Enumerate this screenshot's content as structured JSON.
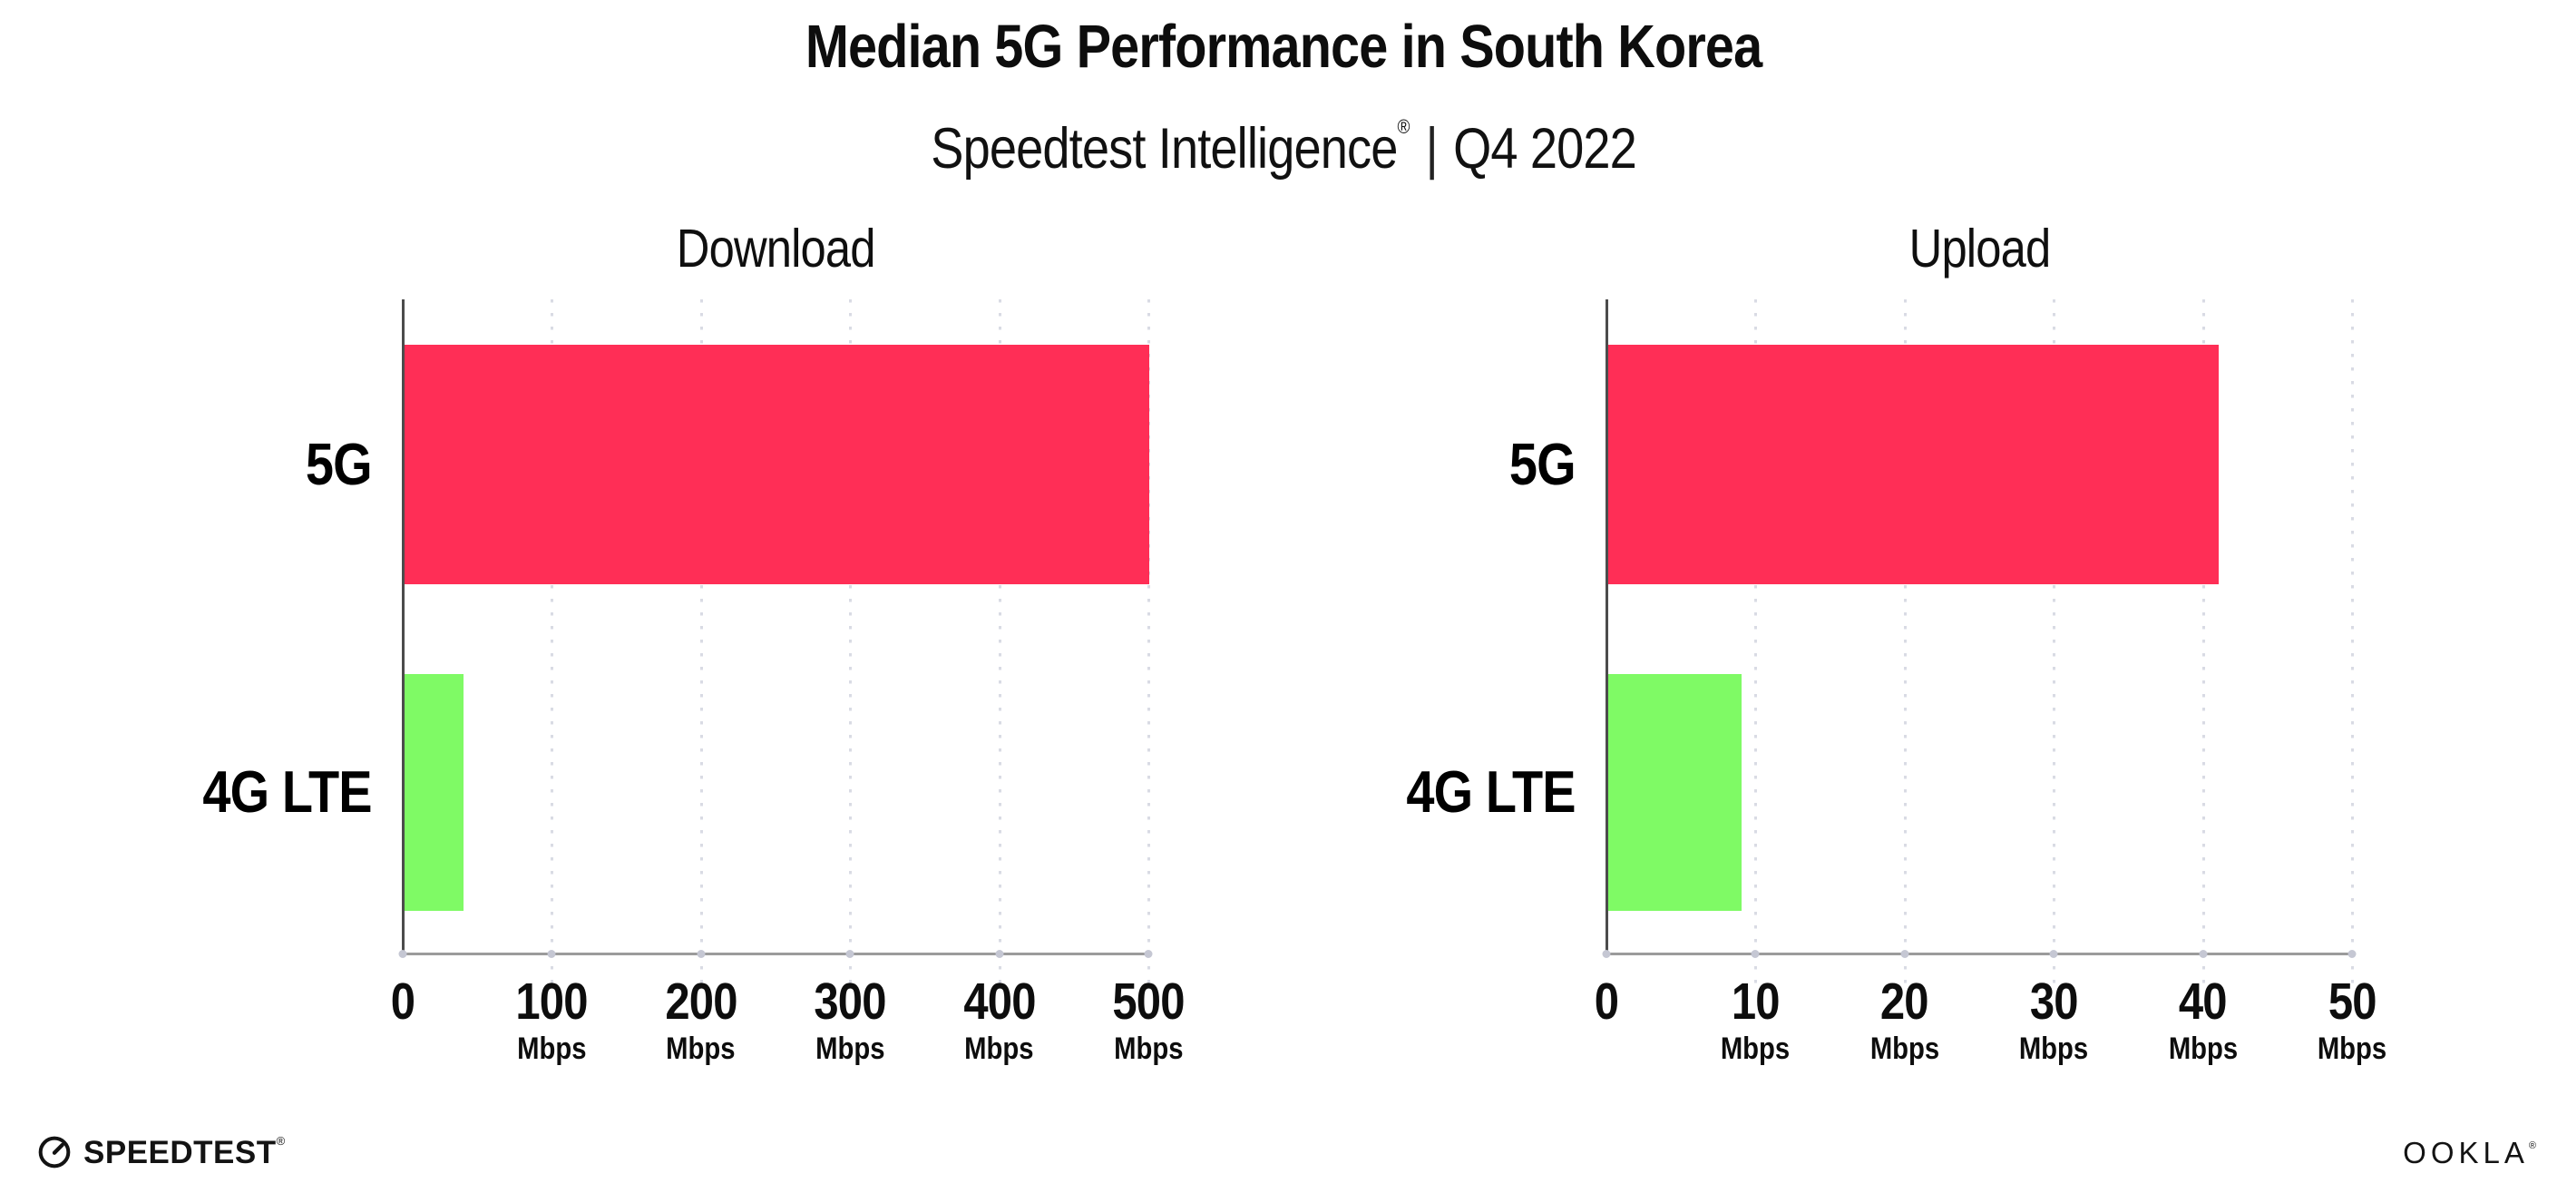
{
  "page": {
    "title": "Median 5G Performance in South Korea",
    "subtitle": {
      "brand": "Speedtest Intelligence",
      "registered": "®",
      "separator": "|",
      "period": "Q4 2022"
    }
  },
  "chart_data": [
    {
      "type": "bar",
      "orientation": "horizontal",
      "title": "Download",
      "categories": [
        "5G",
        "4G LTE"
      ],
      "values": [
        500,
        40
      ],
      "unit": "Mbps",
      "xlim": [
        0,
        500
      ],
      "xticks": [
        0,
        100,
        200,
        300,
        400,
        500
      ],
      "xtick_unit": "Mbps",
      "bar_colors": [
        "#FF2E56",
        "#7FFA65"
      ],
      "grid": "vertical-dotted",
      "legend_position": "none"
    },
    {
      "type": "bar",
      "orientation": "horizontal",
      "title": "Upload",
      "categories": [
        "5G",
        "4G LTE"
      ],
      "values": [
        41,
        9
      ],
      "unit": "Mbps",
      "xlim": [
        0,
        50
      ],
      "xticks": [
        0,
        10,
        20,
        30,
        40,
        50
      ],
      "xtick_unit": "Mbps",
      "bar_colors": [
        "#FF2E56",
        "#7FFA65"
      ],
      "grid": "vertical-dotted",
      "legend_position": "none"
    }
  ],
  "footer": {
    "speedtest_label": "SPEEDTEST",
    "speedtest_mark": "®",
    "ookla_label": "OOKLA",
    "ookla_mark": "®"
  },
  "colors": {
    "bar_5g": "#FF2E56",
    "bar_4g_lte": "#7FFA65",
    "gridline": "#D9DBE4",
    "y_axis": "#4C4C4C",
    "x_axis": "#9B9B9B",
    "text": "#0D0D0D",
    "background": "#FFFFFF"
  }
}
